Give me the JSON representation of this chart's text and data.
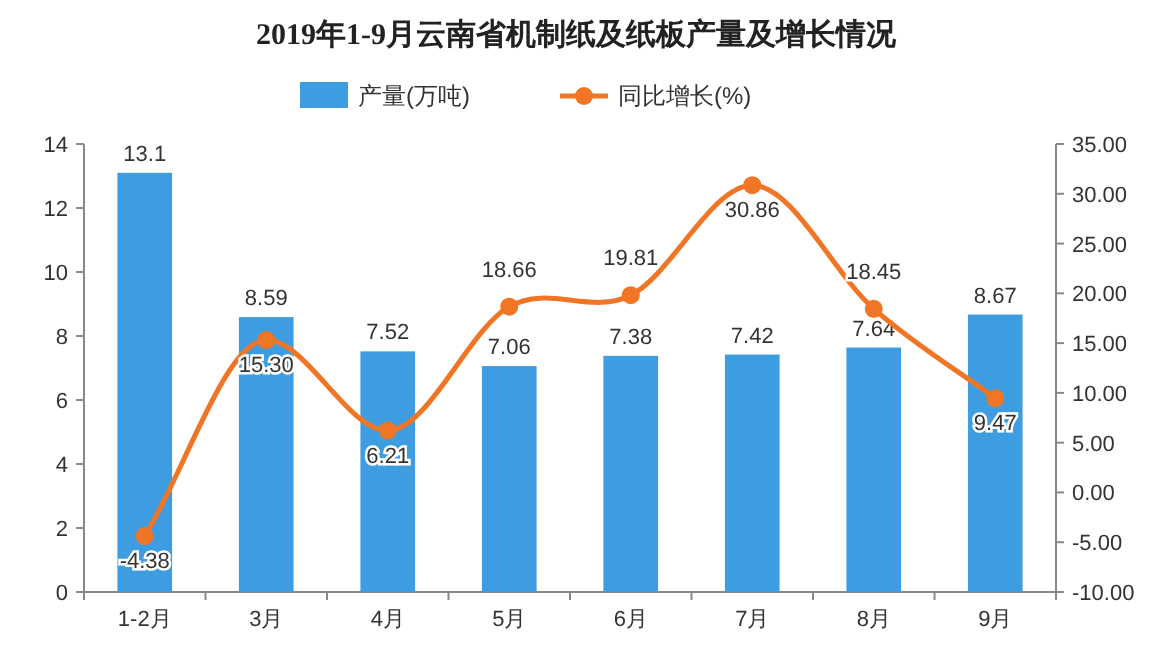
{
  "chart_data": {
    "type": "bar",
    "title": "2019年1-9月云南省机制纸及纸板产量及增长情况",
    "categories": [
      "1-2月",
      "3月",
      "4月",
      "5月",
      "6月",
      "7月",
      "8月",
      "9月"
    ],
    "series": [
      {
        "name": "产量(万吨)",
        "color": "#3e9de0",
        "values": [
          13.1,
          8.59,
          7.52,
          7.06,
          7.38,
          7.42,
          7.64,
          8.67
        ],
        "value_labels": [
          "13.1",
          "8.59",
          "7.52",
          "7.06",
          "7.38",
          "7.42",
          "7.64",
          "8.67"
        ]
      },
      {
        "name": "同比增长(%)",
        "type": "line",
        "axis": "y2",
        "color": "#f07524",
        "marker": "circle",
        "values": [
          -4.38,
          15.3,
          6.21,
          18.66,
          19.81,
          30.86,
          18.45,
          9.47
        ],
        "value_labels": [
          "-4.38",
          "15.30",
          "6.21",
          "18.66",
          "19.81",
          "30.86",
          "18.45",
          "9.47"
        ]
      }
    ],
    "ylim": [
      0,
      14
    ],
    "yticks": [
      0,
      2,
      4,
      6,
      8,
      10,
      12,
      14
    ],
    "y2lim": [
      -10,
      35
    ],
    "y2ticks": [
      {
        "value": -10,
        "label": "-10.00"
      },
      {
        "value": -5,
        "label": "-5.00"
      },
      {
        "value": 0,
        "label": "0.00"
      },
      {
        "value": 5,
        "label": "5.00"
      },
      {
        "value": 10,
        "label": "10.00"
      },
      {
        "value": 15,
        "label": "15.00"
      },
      {
        "value": 20,
        "label": "20.00"
      },
      {
        "value": 25,
        "label": "25.00"
      },
      {
        "value": 30,
        "label": "30.00"
      },
      {
        "value": 35,
        "label": "35.00"
      }
    ],
    "legend": "top",
    "grid": false
  }
}
